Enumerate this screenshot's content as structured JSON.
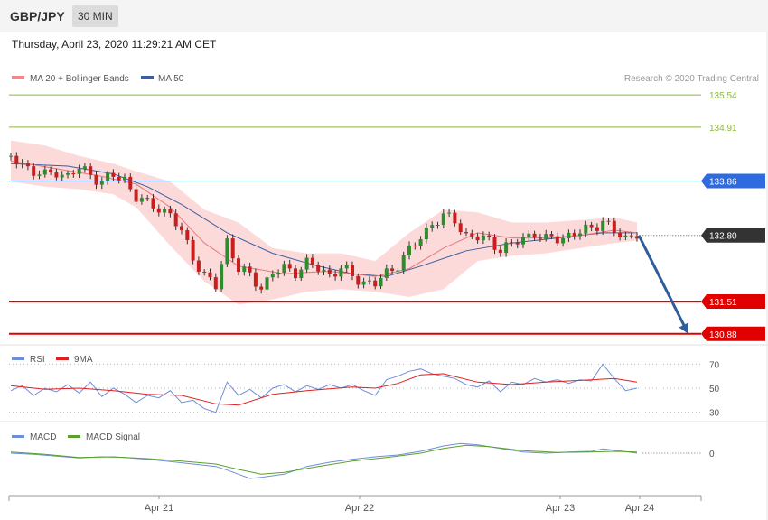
{
  "header": {
    "pair": "GBP/JPY",
    "timeframe": "30 MIN"
  },
  "datetime": "Thursday, April 23, 2020 11:29:21 AM CET",
  "credit": "Research © 2020 Trading Central",
  "legends": {
    "main": [
      {
        "label": "MA 20 + Bollinger Bands",
        "color": "#f08a8a"
      },
      {
        "label": "MA 50",
        "color": "#3d5fa0"
      }
    ],
    "rsi": [
      {
        "label": "RSI",
        "color": "#6f8ed8"
      },
      {
        "label": "9MA",
        "color": "#e02020"
      }
    ],
    "macd": [
      {
        "label": "MACD",
        "color": "#6f8ed8"
      },
      {
        "label": "MACD Signal",
        "color": "#5aa02c"
      }
    ]
  },
  "chart_data": [
    {
      "type": "candlestick",
      "name": "price",
      "x_labels": [
        "Apr 21",
        "Apr 22",
        "Apr 23",
        "Apr 24"
      ],
      "ylim": [
        130.7,
        135.7
      ],
      "levels": [
        {
          "value": 135.54,
          "label": "135.54",
          "color": "#8ab83a",
          "style": "thin"
        },
        {
          "value": 134.91,
          "label": "134.91",
          "color": "#8ab83a",
          "style": "thin"
        },
        {
          "value": 133.86,
          "label": "133.86",
          "color": "#2f6be0",
          "style": "resistance"
        },
        {
          "value": 132.8,
          "label": "132.80",
          "color": "#333333",
          "style": "current"
        },
        {
          "value": 131.51,
          "label": "131.51",
          "color": "#e00000",
          "style": "support"
        },
        {
          "value": 130.88,
          "label": "130.88",
          "color": "#e00000",
          "style": "support"
        }
      ],
      "close_path": [
        [
          0,
          134.3
        ],
        [
          10,
          134.2
        ],
        [
          20,
          134.05
        ],
        [
          30,
          133.95
        ],
        [
          40,
          134.05
        ],
        [
          50,
          133.95
        ],
        [
          60,
          134.1
        ],
        [
          70,
          134.0
        ],
        [
          80,
          133.85
        ],
        [
          90,
          133.95
        ],
        [
          100,
          133.9
        ],
        [
          110,
          133.55
        ],
        [
          120,
          133.4
        ],
        [
          130,
          133.35
        ],
        [
          140,
          133.2
        ],
        [
          150,
          132.85
        ],
        [
          160,
          132.4
        ],
        [
          170,
          132.0
        ],
        [
          180,
          131.8
        ],
        [
          190,
          132.7
        ],
        [
          200,
          132.15
        ],
        [
          210,
          132.0
        ],
        [
          220,
          131.8
        ],
        [
          230,
          132.05
        ],
        [
          240,
          132.15
        ],
        [
          250,
          132.1
        ],
        [
          260,
          132.25
        ],
        [
          270,
          132.15
        ],
        [
          280,
          132.05
        ],
        [
          290,
          132.15
        ],
        [
          300,
          132.0
        ],
        [
          310,
          131.9
        ],
        [
          320,
          131.85
        ],
        [
          330,
          132.05
        ],
        [
          340,
          132.25
        ],
        [
          350,
          132.5
        ],
        [
          360,
          132.75
        ],
        [
          370,
          133.05
        ],
        [
          380,
          133.15
        ],
        [
          390,
          133.1
        ],
        [
          400,
          132.8
        ],
        [
          410,
          132.75
        ],
        [
          420,
          132.7
        ],
        [
          430,
          132.55
        ],
        [
          440,
          132.6
        ],
        [
          450,
          132.75
        ],
        [
          460,
          132.85
        ],
        [
          470,
          132.7
        ],
        [
          480,
          132.75
        ],
        [
          490,
          132.8
        ],
        [
          500,
          132.85
        ],
        [
          510,
          132.95
        ],
        [
          520,
          133.1
        ],
        [
          530,
          132.85
        ],
        [
          540,
          132.75
        ],
        [
          550,
          132.85
        ]
      ],
      "ma20": [
        [
          0,
          134.25
        ],
        [
          40,
          134.1
        ],
        [
          80,
          133.95
        ],
        [
          110,
          133.8
        ],
        [
          140,
          133.35
        ],
        [
          170,
          132.65
        ],
        [
          200,
          132.2
        ],
        [
          240,
          132.05
        ],
        [
          280,
          132.1
        ],
        [
          320,
          132.0
        ],
        [
          350,
          132.15
        ],
        [
          380,
          132.55
        ],
        [
          410,
          132.85
        ],
        [
          440,
          132.75
        ],
        [
          470,
          132.75
        ],
        [
          500,
          132.8
        ],
        [
          530,
          132.9
        ],
        [
          550,
          132.85
        ]
      ],
      "ma50": [
        [
          0,
          134.2
        ],
        [
          50,
          134.15
        ],
        [
          90,
          134.0
        ],
        [
          120,
          133.75
        ],
        [
          150,
          133.4
        ],
        [
          190,
          132.85
        ],
        [
          230,
          132.45
        ],
        [
          270,
          132.2
        ],
        [
          300,
          132.05
        ],
        [
          330,
          132.0
        ],
        [
          360,
          132.2
        ],
        [
          400,
          132.5
        ],
        [
          440,
          132.65
        ],
        [
          480,
          132.75
        ],
        [
          520,
          132.85
        ],
        [
          550,
          132.85
        ]
      ],
      "band_upper": [
        [
          0,
          134.65
        ],
        [
          30,
          134.55
        ],
        [
          60,
          134.35
        ],
        [
          90,
          134.2
        ],
        [
          110,
          134.05
        ],
        [
          140,
          133.85
        ],
        [
          170,
          133.3
        ],
        [
          200,
          133.05
        ],
        [
          230,
          132.55
        ],
        [
          260,
          132.45
        ],
        [
          290,
          132.45
        ],
        [
          320,
          132.3
        ],
        [
          350,
          132.85
        ],
        [
          380,
          133.3
        ],
        [
          410,
          133.25
        ],
        [
          440,
          133.05
        ],
        [
          470,
          133.05
        ],
        [
          500,
          133.1
        ],
        [
          530,
          133.15
        ],
        [
          550,
          133.05
        ]
      ],
      "band_lower": [
        [
          0,
          133.85
        ],
        [
          30,
          133.75
        ],
        [
          60,
          133.7
        ],
        [
          90,
          133.6
        ],
        [
          110,
          133.35
        ],
        [
          140,
          132.6
        ],
        [
          170,
          131.9
        ],
        [
          200,
          131.45
        ],
        [
          230,
          131.55
        ],
        [
          260,
          131.7
        ],
        [
          290,
          131.75
        ],
        [
          320,
          131.7
        ],
        [
          350,
          131.6
        ],
        [
          380,
          131.75
        ],
        [
          410,
          132.3
        ],
        [
          440,
          132.4
        ],
        [
          470,
          132.45
        ],
        [
          500,
          132.55
        ],
        [
          530,
          132.65
        ],
        [
          550,
          132.7
        ]
      ],
      "forecast_arrow": {
        "from": [
          550,
          132.8
        ],
        "to": [
          595,
          130.88
        ]
      }
    },
    {
      "type": "line",
      "name": "RSI",
      "ylim": [
        20,
        80
      ],
      "levels": [
        70,
        50,
        30
      ],
      "current": 50,
      "series": [
        {
          "name": "RSI",
          "values": [
            [
              0,
              48
            ],
            [
              10,
              52
            ],
            [
              20,
              44
            ],
            [
              30,
              50
            ],
            [
              40,
              47
            ],
            [
              50,
              53
            ],
            [
              60,
              46
            ],
            [
              70,
              55
            ],
            [
              80,
              43
            ],
            [
              90,
              50
            ],
            [
              100,
              45
            ],
            [
              110,
              38
            ],
            [
              120,
              44
            ],
            [
              130,
              42
            ],
            [
              140,
              48
            ],
            [
              150,
              38
            ],
            [
              160,
              40
            ],
            [
              170,
              33
            ],
            [
              180,
              30
            ],
            [
              190,
              55
            ],
            [
              200,
              44
            ],
            [
              210,
              49
            ],
            [
              220,
              42
            ],
            [
              230,
              50
            ],
            [
              240,
              53
            ],
            [
              250,
              47
            ],
            [
              260,
              52
            ],
            [
              270,
              49
            ],
            [
              280,
              53
            ],
            [
              290,
              50
            ],
            [
              300,
              53
            ],
            [
              310,
              48
            ],
            [
              320,
              44
            ],
            [
              330,
              57
            ],
            [
              340,
              60
            ],
            [
              350,
              64
            ],
            [
              360,
              66
            ],
            [
              370,
              62
            ],
            [
              380,
              60
            ],
            [
              390,
              58
            ],
            [
              400,
              53
            ],
            [
              410,
              51
            ],
            [
              420,
              56
            ],
            [
              430,
              47
            ],
            [
              440,
              55
            ],
            [
              450,
              53
            ],
            [
              460,
              58
            ],
            [
              470,
              55
            ],
            [
              480,
              57
            ],
            [
              490,
              54
            ],
            [
              500,
              57
            ],
            [
              510,
              56
            ],
            [
              520,
              70
            ],
            [
              530,
              58
            ],
            [
              540,
              48
            ],
            [
              550,
              50
            ]
          ]
        },
        {
          "name": "9MA",
          "values": [
            [
              0,
              52
            ],
            [
              30,
              49
            ],
            [
              60,
              50
            ],
            [
              90,
              48
            ],
            [
              120,
              45
            ],
            [
              150,
              44
            ],
            [
              180,
              37
            ],
            [
              200,
              36
            ],
            [
              230,
              45
            ],
            [
              260,
              48
            ],
            [
              300,
              51
            ],
            [
              320,
              50
            ],
            [
              340,
              54
            ],
            [
              360,
              61
            ],
            [
              380,
              62
            ],
            [
              410,
              55
            ],
            [
              440,
              53
            ],
            [
              470,
              55
            ],
            [
              490,
              56
            ],
            [
              510,
              57
            ],
            [
              530,
              58
            ],
            [
              550,
              55
            ]
          ]
        }
      ]
    },
    {
      "type": "line",
      "name": "MACD",
      "ylim": [
        -0.9,
        0.45
      ],
      "levels": [
        0
      ],
      "series": [
        {
          "name": "MACD",
          "values": [
            [
              0,
              0.0
            ],
            [
              20,
              -0.02
            ],
            [
              40,
              -0.05
            ],
            [
              60,
              -0.08
            ],
            [
              80,
              -0.06
            ],
            [
              100,
              -0.07
            ],
            [
              120,
              -0.1
            ],
            [
              140,
              -0.14
            ],
            [
              160,
              -0.18
            ],
            [
              180,
              -0.22
            ],
            [
              190,
              -0.28
            ],
            [
              200,
              -0.35
            ],
            [
              210,
              -0.42
            ],
            [
              220,
              -0.4
            ],
            [
              240,
              -0.35
            ],
            [
              260,
              -0.22
            ],
            [
              280,
              -0.15
            ],
            [
              300,
              -0.1
            ],
            [
              320,
              -0.06
            ],
            [
              340,
              -0.03
            ],
            [
              360,
              0.03
            ],
            [
              380,
              0.12
            ],
            [
              395,
              0.16
            ],
            [
              410,
              0.14
            ],
            [
              430,
              0.08
            ],
            [
              450,
              0.02
            ],
            [
              470,
              0.0
            ],
            [
              490,
              0.02
            ],
            [
              510,
              0.03
            ],
            [
              520,
              0.07
            ],
            [
              530,
              0.05
            ],
            [
              550,
              0.0
            ]
          ]
        },
        {
          "name": "MACD Signal",
          "values": [
            [
              0,
              0.02
            ],
            [
              30,
              -0.02
            ],
            [
              60,
              -0.07
            ],
            [
              90,
              -0.06
            ],
            [
              120,
              -0.09
            ],
            [
              150,
              -0.13
            ],
            [
              180,
              -0.18
            ],
            [
              200,
              -0.27
            ],
            [
              220,
              -0.35
            ],
            [
              240,
              -0.32
            ],
            [
              270,
              -0.22
            ],
            [
              300,
              -0.13
            ],
            [
              330,
              -0.07
            ],
            [
              360,
              0.0
            ],
            [
              380,
              0.08
            ],
            [
              400,
              0.13
            ],
            [
              420,
              0.11
            ],
            [
              450,
              0.04
            ],
            [
              480,
              0.01
            ],
            [
              510,
              0.02
            ],
            [
              530,
              0.03
            ],
            [
              550,
              0.02
            ]
          ]
        }
      ]
    }
  ]
}
